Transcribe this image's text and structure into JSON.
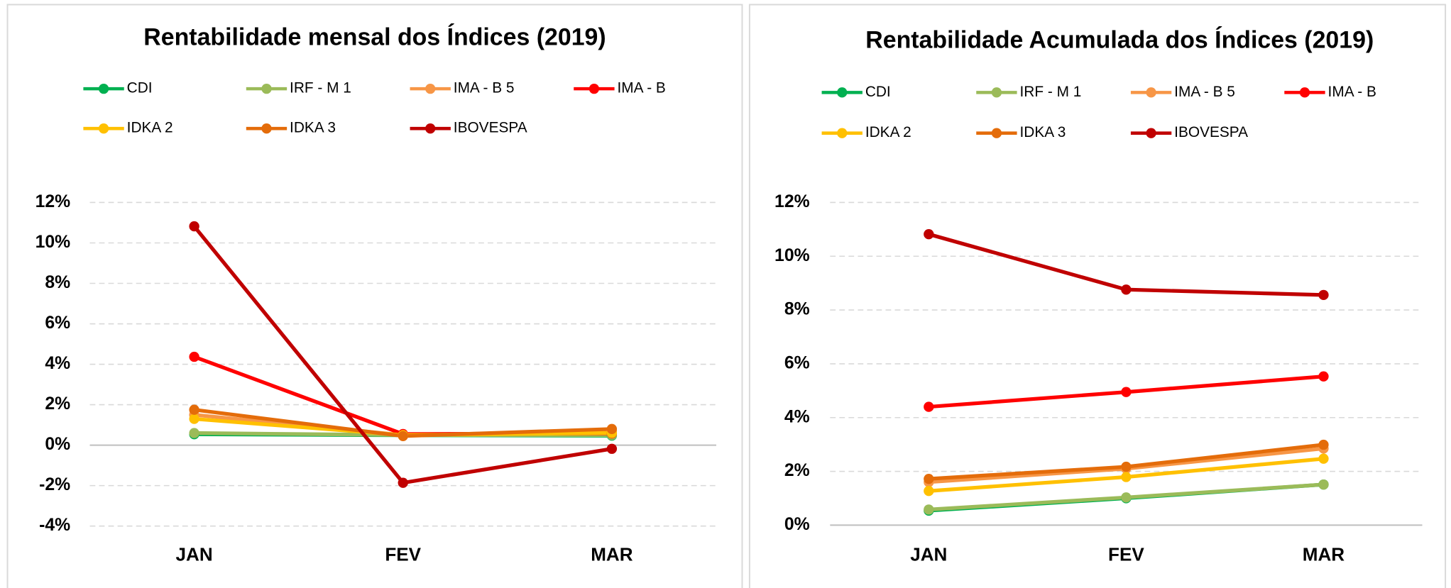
{
  "chart_data": [
    {
      "type": "line",
      "title": "Rentabilidade mensal dos Índices (2019)",
      "categories": [
        "JAN",
        "FEV",
        "MAR"
      ],
      "series": [
        {
          "name": "CDI",
          "color": "#00b050",
          "values": [
            0.54,
            0.49,
            0.47
          ]
        },
        {
          "name": "IRF - M 1",
          "color": "#9bbb59",
          "values": [
            0.6,
            0.5,
            0.5
          ]
        },
        {
          "name": "IMA - B 5",
          "color": "#f79646",
          "values": [
            1.5,
            0.5,
            0.7
          ]
        },
        {
          "name": "IMA - B",
          "color": "#ff0000",
          "values": [
            4.37,
            0.55,
            0.58
          ]
        },
        {
          "name": "IDKA 2",
          "color": "#ffc000",
          "values": [
            1.3,
            0.5,
            0.6
          ]
        },
        {
          "name": "IDKA 3",
          "color": "#e46c0a",
          "values": [
            1.75,
            0.45,
            0.8
          ]
        },
        {
          "name": "IBOVESPA",
          "color": "#c00000",
          "values": [
            10.82,
            -1.86,
            -0.18
          ]
        }
      ],
      "ylim": [
        -4,
        12
      ],
      "yticks": [
        {
          "value": -4,
          "label": "-4%"
        },
        {
          "value": -2,
          "label": "-2%"
        },
        {
          "value": 0,
          "label": "0%"
        },
        {
          "value": 2,
          "label": "2%"
        },
        {
          "value": 4,
          "label": "4%"
        },
        {
          "value": 6,
          "label": "6%"
        },
        {
          "value": 8,
          "label": "8%"
        },
        {
          "value": 10,
          "label": "10%"
        },
        {
          "value": 12,
          "label": "12%"
        }
      ],
      "grid": true,
      "legend": "top"
    },
    {
      "type": "line",
      "title": "Rentabilidade Acumulada dos Índices (2019)",
      "categories": [
        "JAN",
        "FEV",
        "MAR"
      ],
      "series": [
        {
          "name": "CDI",
          "color": "#00b050",
          "values": [
            0.54,
            1.0,
            1.51
          ]
        },
        {
          "name": "IRF - M 1",
          "color": "#9bbb59",
          "values": [
            0.58,
            1.03,
            1.51
          ]
        },
        {
          "name": "IMA - B 5",
          "color": "#f79646",
          "values": [
            1.6,
            2.1,
            2.85
          ]
        },
        {
          "name": "IMA - B",
          "color": "#ff0000",
          "values": [
            4.4,
            4.95,
            5.53
          ]
        },
        {
          "name": "IDKA 2",
          "color": "#ffc000",
          "values": [
            1.27,
            1.79,
            2.47
          ]
        },
        {
          "name": "IDKA 3",
          "color": "#e46c0a",
          "values": [
            1.72,
            2.17,
            2.99
          ]
        },
        {
          "name": "IBOVESPA",
          "color": "#c00000",
          "values": [
            10.82,
            8.76,
            8.56
          ]
        }
      ],
      "ylim": [
        0,
        12
      ],
      "yticks": [
        {
          "value": 0,
          "label": "0%"
        },
        {
          "value": 2,
          "label": "2%"
        },
        {
          "value": 4,
          "label": "4%"
        },
        {
          "value": 6,
          "label": "6%"
        },
        {
          "value": 8,
          "label": "8%"
        },
        {
          "value": 10,
          "label": "10%"
        },
        {
          "value": 12,
          "label": "12%"
        }
      ],
      "grid": true,
      "legend": "top"
    }
  ]
}
